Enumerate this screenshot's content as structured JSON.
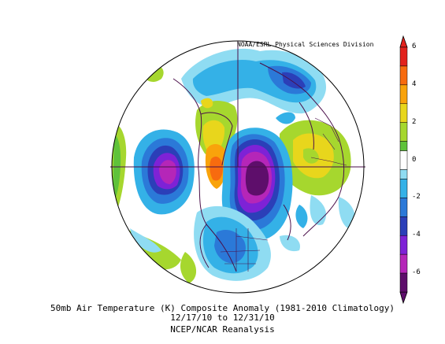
{
  "attribution": "NOAA/ESRL Physical Sciences Division",
  "caption": {
    "line1": "50mb Air Temperature (K) Composite Anomaly (1981-2010 Climatology)",
    "line2": "12/17/10  to 12/31/10",
    "line3": "NCEP/NCAR Reanalysis"
  },
  "map": {
    "projection": "polar stereographic (north pole)",
    "variable": "50mb Air Temperature anomaly (K)"
  },
  "colorbar": {
    "ticks": [
      {
        "value": 6,
        "label": "6"
      },
      {
        "value": 4,
        "label": "4"
      },
      {
        "value": 2,
        "label": "2"
      },
      {
        "value": 0,
        "label": "0"
      },
      {
        "value": -2,
        "label": "-2"
      },
      {
        "value": -4,
        "label": "-4"
      },
      {
        "value": -6,
        "label": "-6"
      }
    ],
    "bins": [
      {
        "from": 5,
        "to": 6,
        "color": "#e2211c"
      },
      {
        "from": 4,
        "to": 5,
        "color": "#f76b0f"
      },
      {
        "from": 3,
        "to": 4,
        "color": "#f9a30b"
      },
      {
        "from": 2,
        "to": 3,
        "color": "#e8d61c"
      },
      {
        "from": 1,
        "to": 2,
        "color": "#a6d72e"
      },
      {
        "from": 0.5,
        "to": 1,
        "color": "#5fc23a"
      },
      {
        "from": -0.5,
        "to": 0.5,
        "color": "#ffffff"
      },
      {
        "from": -1,
        "to": -0.5,
        "color": "#8fdcf2"
      },
      {
        "from": -2,
        "to": -1,
        "color": "#34b1e7"
      },
      {
        "from": -3,
        "to": -2,
        "color": "#2b79d8"
      },
      {
        "from": -4,
        "to": -3,
        "color": "#2b3fb8"
      },
      {
        "from": -5,
        "to": -4,
        "color": "#7e22d6"
      },
      {
        "from": -6,
        "to": -5,
        "color": "#b526b8"
      },
      {
        "from": -7,
        "to": -6,
        "color": "#5e0e6b"
      }
    ]
  }
}
